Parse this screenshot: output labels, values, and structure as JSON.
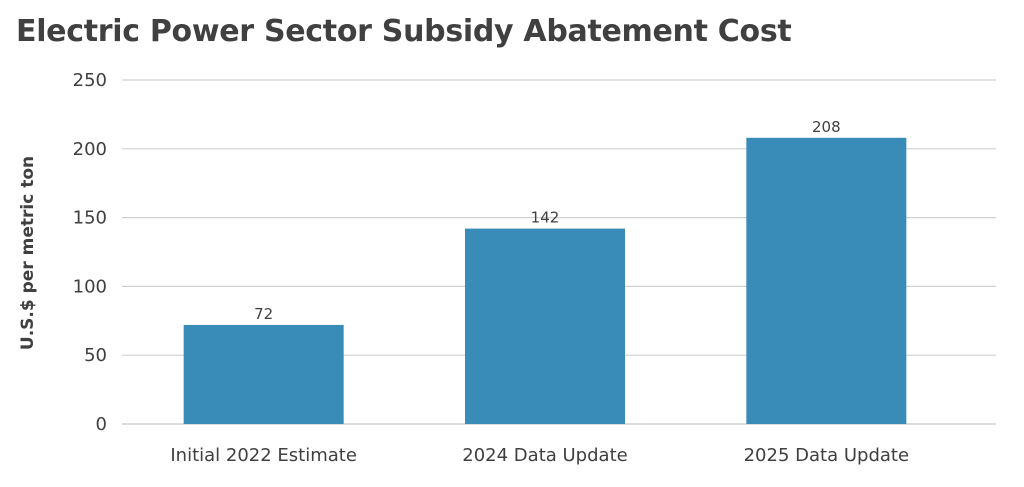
{
  "chart_data": {
    "type": "bar",
    "title": "Electric Power Sector Subsidy Abatement Cost",
    "xlabel": "",
    "ylabel": "U.S.$ per metric ton",
    "categories": [
      "Initial 2022 Estimate",
      "2024 Data Update",
      "2025 Data Update"
    ],
    "values": [
      72,
      142,
      208
    ],
    "data_labels": [
      "72",
      "142",
      "208"
    ],
    "ylim": [
      0,
      250
    ],
    "yticks": [
      0,
      50,
      100,
      150,
      200,
      250
    ],
    "ytick_labels": [
      "0",
      "50",
      "100",
      "150",
      "200",
      "250"
    ],
    "grid": true,
    "legend": "none",
    "colors": {
      "bar": "#3a8cb8",
      "grid": "#d0d0d0",
      "text": "#404040"
    }
  }
}
